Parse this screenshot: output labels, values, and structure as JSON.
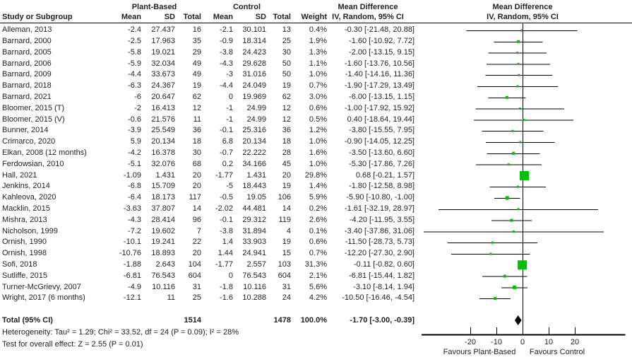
{
  "colors": {
    "marker": "#00bf00",
    "diamond": "#000000",
    "line": "#000000",
    "text": "#222222"
  },
  "header": {
    "study": "Study or Subgroup",
    "group1": "Plant-Based",
    "group2": "Control",
    "mean": "Mean",
    "sd": "SD",
    "total": "Total",
    "weight": "Weight",
    "md_title": "Mean Difference",
    "md_subtitle": "IV, Random, 95% CI"
  },
  "chart_data": {
    "type": "forest",
    "effect_measure": "Mean Difference IV, Random, 95% CI",
    "studies": [
      {
        "study": "Alleman, 2013",
        "mean1": "-2.4",
        "sd1": "27.437",
        "n1": "16",
        "mean2": "-2.1",
        "sd2": "30.101",
        "n2": "13",
        "weight": "0.4%",
        "w": 0.4,
        "md_text": "-0.30 [-21.48, 20.88]",
        "md": -0.3,
        "lo": -21.48,
        "hi": 20.88
      },
      {
        "study": "Barnard, 2000",
        "mean1": "-2.5",
        "sd1": "17.963",
        "n1": "35",
        "mean2": "-0.9",
        "sd2": "18.314",
        "n2": "25",
        "weight": "1.9%",
        "w": 1.9,
        "md_text": "-1.60 [-10.92, 7.72]",
        "md": -1.6,
        "lo": -10.92,
        "hi": 7.72
      },
      {
        "study": "Barnard, 2005",
        "mean1": "-5.8",
        "sd1": "19.021",
        "n1": "29",
        "mean2": "-3.8",
        "sd2": "24.423",
        "n2": "30",
        "weight": "1.3%",
        "w": 1.3,
        "md_text": "-2.00 [-13.15, 9.15]",
        "md": -2.0,
        "lo": -13.15,
        "hi": 9.15
      },
      {
        "study": "Barnard, 2006",
        "mean1": "-5.9",
        "sd1": "32.034",
        "n1": "49",
        "mean2": "-4.3",
        "sd2": "29.628",
        "n2": "50",
        "weight": "1.1%",
        "w": 1.1,
        "md_text": "-1.60 [-13.76, 10.56]",
        "md": -1.6,
        "lo": -13.76,
        "hi": 10.56
      },
      {
        "study": "Barnard, 2009",
        "mean1": "-4.4",
        "sd1": "33.673",
        "n1": "49",
        "mean2": "-3",
        "sd2": "31.016",
        "n2": "50",
        "weight": "1.0%",
        "w": 1.0,
        "md_text": "-1.40 [-14.16, 11.36]",
        "md": -1.4,
        "lo": -14.16,
        "hi": 11.36
      },
      {
        "study": "Barnard, 2018",
        "mean1": "-6.3",
        "sd1": "24.367",
        "n1": "19",
        "mean2": "-4.4",
        "sd2": "24.049",
        "n2": "19",
        "weight": "0.7%",
        "w": 0.7,
        "md_text": "-1.90 [-17.29, 13.49]",
        "md": -1.9,
        "lo": -17.29,
        "hi": 13.49
      },
      {
        "study": "Barnard, 2021",
        "mean1": "-6",
        "sd1": "20.647",
        "n1": "62",
        "mean2": "0",
        "sd2": "19.969",
        "n2": "62",
        "weight": "3.0%",
        "w": 3.0,
        "md_text": "-6.00 [-13.15, 1.15]",
        "md": -6.0,
        "lo": -13.15,
        "hi": 1.15
      },
      {
        "study": "Bloomer, 2015 (T)",
        "mean1": "-2",
        "sd1": "16.413",
        "n1": "12",
        "mean2": "-1",
        "sd2": "24.99",
        "n2": "12",
        "weight": "0.6%",
        "w": 0.6,
        "md_text": "-1.00 [-17.92, 15.92]",
        "md": -1.0,
        "lo": -17.92,
        "hi": 15.92
      },
      {
        "study": "Bloomer, 2015 (V)",
        "mean1": "-0.6",
        "sd1": "21.576",
        "n1": "11",
        "mean2": "-1",
        "sd2": "24.99",
        "n2": "12",
        "weight": "0.5%",
        "w": 0.5,
        "md_text": "0.40 [-18.64, 19.44]",
        "md": 0.4,
        "lo": -18.64,
        "hi": 19.44
      },
      {
        "study": "Bunner, 2014",
        "mean1": "-3.9",
        "sd1": "25.549",
        "n1": "36",
        "mean2": "-0.1",
        "sd2": "25.316",
        "n2": "36",
        "weight": "1.2%",
        "w": 1.2,
        "md_text": "-3.80 [-15.55, 7.95]",
        "md": -3.8,
        "lo": -15.55,
        "hi": 7.95
      },
      {
        "study": "Crimarco, 2020",
        "mean1": "5.9",
        "sd1": "20.134",
        "n1": "18",
        "mean2": "6.8",
        "sd2": "20.134",
        "n2": "18",
        "weight": "1.0%",
        "w": 1.0,
        "md_text": "-0.90 [-14.05, 12.25]",
        "md": -0.9,
        "lo": -14.05,
        "hi": 12.25
      },
      {
        "study": "Elkan, 2008 (12 months)",
        "mean1": "-4.2",
        "sd1": "16.378",
        "n1": "30",
        "mean2": "-0.7",
        "sd2": "22.222",
        "n2": "28",
        "weight": "1.6%",
        "w": 1.6,
        "md_text": "-3.50 [-13.60, 6.60]",
        "md": -3.5,
        "lo": -13.6,
        "hi": 6.6
      },
      {
        "study": "Ferdowsian, 2010",
        "mean1": "-5.1",
        "sd1": "32.076",
        "n1": "68",
        "mean2": "0.2",
        "sd2": "34.166",
        "n2": "45",
        "weight": "1.0%",
        "w": 1.0,
        "md_text": "-5.30 [-17.86, 7.26]",
        "md": -5.3,
        "lo": -17.86,
        "hi": 7.26
      },
      {
        "study": "Hall, 2021",
        "mean1": "-1.09",
        "sd1": "1.431",
        "n1": "20",
        "mean2": "-1.77",
        "sd2": "1.431",
        "n2": "20",
        "weight": "29.8%",
        "w": 29.8,
        "md_text": "0.68 [-0.21, 1.57]",
        "md": 0.68,
        "lo": -0.21,
        "hi": 1.57
      },
      {
        "study": "Jenkins, 2014",
        "mean1": "-6.8",
        "sd1": "15.709",
        "n1": "20",
        "mean2": "-5",
        "sd2": "18.443",
        "n2": "19",
        "weight": "1.4%",
        "w": 1.4,
        "md_text": "-1.80 [-12.58, 8.98]",
        "md": -1.8,
        "lo": -12.58,
        "hi": 8.98
      },
      {
        "study": "Kahleova, 2020",
        "mean1": "-6.4",
        "sd1": "18.173",
        "n1": "117",
        "mean2": "-0.5",
        "sd2": "19.05",
        "n2": "106",
        "weight": "5.9%",
        "w": 5.9,
        "md_text": "-5.90 [-10.80, -1.00]",
        "md": -5.9,
        "lo": -10.8,
        "hi": -1.0
      },
      {
        "study": "Macklin, 2015",
        "mean1": "-3.63",
        "sd1": "37.807",
        "n1": "14",
        "mean2": "-2.02",
        "sd2": "44.481",
        "n2": "14",
        "weight": "0.2%",
        "w": 0.2,
        "md_text": "-1.61 [-32.19, 28.97]",
        "md": -1.61,
        "lo": -32.19,
        "hi": 28.97
      },
      {
        "study": "Mishra, 2013",
        "mean1": "-4.3",
        "sd1": "28.414",
        "n1": "96",
        "mean2": "-0.1",
        "sd2": "29.312",
        "n2": "119",
        "weight": "2.6%",
        "w": 2.6,
        "md_text": "-4.20 [-11.95, 3.55]",
        "md": -4.2,
        "lo": -11.95,
        "hi": 3.55
      },
      {
        "study": "Nicholson, 1999",
        "mean1": "-7.2",
        "sd1": "19.602",
        "n1": "7",
        "mean2": "-3.8",
        "sd2": "31.894",
        "n2": "4",
        "weight": "0.1%",
        "w": 0.1,
        "md_text": "-3.40 [-37.86, 31.06]",
        "md": -3.4,
        "lo": -37.86,
        "hi": 31.06
      },
      {
        "study": "Ornish, 1990",
        "mean1": "-10.1",
        "sd1": "19.241",
        "n1": "22",
        "mean2": "1.4",
        "sd2": "33.903",
        "n2": "19",
        "weight": "0.6%",
        "w": 0.6,
        "md_text": "-11.50 [-28.73, 5.73]",
        "md": -11.5,
        "lo": -28.73,
        "hi": 5.73
      },
      {
        "study": "Ornish, 1998",
        "mean1": "-10.76",
        "sd1": "18.893",
        "n1": "20",
        "mean2": "1.44",
        "sd2": "24.941",
        "n2": "15",
        "weight": "0.7%",
        "w": 0.7,
        "md_text": "-12.20 [-27.30, 2.90]",
        "md": -12.2,
        "lo": -27.3,
        "hi": 2.9
      },
      {
        "study": "Sofi, 2018",
        "mean1": "-1.88",
        "sd1": "2.643",
        "n1": "104",
        "mean2": "-1.77",
        "sd2": "2.557",
        "n2": "103",
        "weight": "31.3%",
        "w": 31.3,
        "md_text": "-0.11 [-0.82, 0.60]",
        "md": -0.11,
        "lo": -0.82,
        "hi": 0.6
      },
      {
        "study": "Sutliffe, 2015",
        "mean1": "-6.81",
        "sd1": "76.543",
        "n1": "604",
        "mean2": "0",
        "sd2": "76.543",
        "n2": "604",
        "weight": "2.1%",
        "w": 2.1,
        "md_text": "-6.81 [-15.44, 1.82]",
        "md": -6.81,
        "lo": -15.44,
        "hi": 1.82
      },
      {
        "study": "Turner-McGrievy, 2007",
        "mean1": "-4.9",
        "sd1": "10.116",
        "n1": "31",
        "mean2": "-1.8",
        "sd2": "10.116",
        "n2": "31",
        "weight": "5.6%",
        "w": 5.6,
        "md_text": "-3.10 [-8.14, 1.94]",
        "md": -3.1,
        "lo": -8.14,
        "hi": 1.94
      },
      {
        "study": "Wright, 2017 (6 months)",
        "mean1": "-12.1",
        "sd1": "11",
        "n1": "25",
        "mean2": "-1.6",
        "sd2": "10.288",
        "n2": "24",
        "weight": "4.2%",
        "w": 4.2,
        "md_text": "-10.50 [-16.46, -4.54]",
        "md": -10.5,
        "lo": -16.46,
        "hi": -4.54
      }
    ],
    "total": {
      "label": "Total (95% CI)",
      "n1": "1514",
      "n2": "1478",
      "weight": "100.0%",
      "md_text": "-1.70 [-3.00, -0.39]",
      "md": -1.7,
      "lo": -3.0,
      "hi": -0.39
    },
    "axis": {
      "min": -38.6,
      "max": 39.3,
      "ticks": [
        -20,
        -10,
        0,
        10,
        20
      ],
      "favours_left": "Favours Plant-Based",
      "favours_right": "Favours Control"
    },
    "footnotes": {
      "heterogeneity": "Heterogeneity: Tau² = 1.29; Chi² = 33.52, df = 24 (P = 0.09); I² = 28%",
      "overall_effect": "Test for overall effect: Z = 2.55 (P = 0.01)"
    }
  }
}
